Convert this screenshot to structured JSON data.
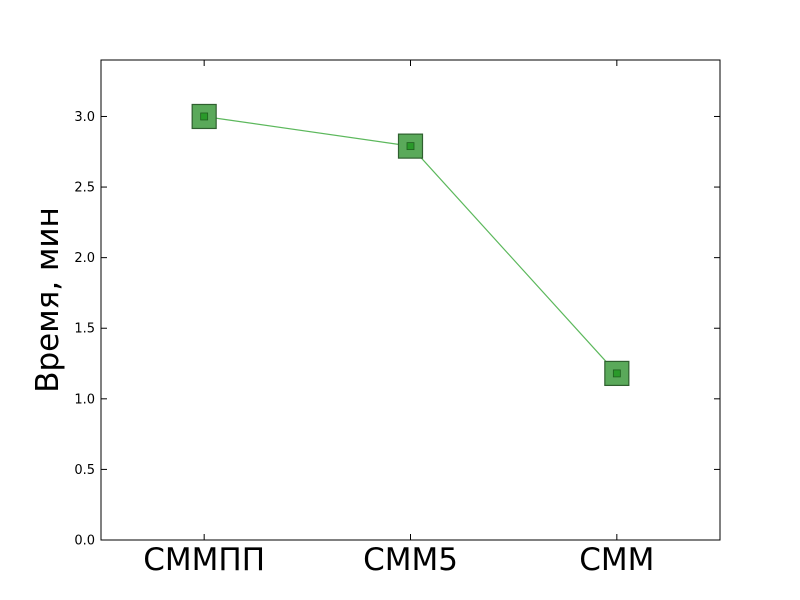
{
  "chart_data": {
    "type": "line",
    "categories": [
      "СММПП",
      "СММ5",
      "СММ"
    ],
    "values": [
      3.0,
      2.79,
      1.18
    ],
    "xlabel": "",
    "ylabel": "Время, мин",
    "ylim": [
      0,
      3.4
    ],
    "yticks": [
      {
        "value": 0.0,
        "label": "0.0"
      },
      {
        "value": 0.5,
        "label": "0.5"
      },
      {
        "value": 1.0,
        "label": "1.0"
      },
      {
        "value": 1.5,
        "label": "1.5"
      },
      {
        "value": 2.0,
        "label": "2.0"
      },
      {
        "value": 2.5,
        "label": "2.5"
      },
      {
        "value": 3.0,
        "label": "3.0"
      }
    ],
    "grid": false,
    "legend": "none",
    "colors": {
      "line": "#5cb85c",
      "marker_fill": "#5aa95a",
      "marker_edge": "#2f5f2f",
      "inner_marker": "#2a9a2a"
    }
  }
}
